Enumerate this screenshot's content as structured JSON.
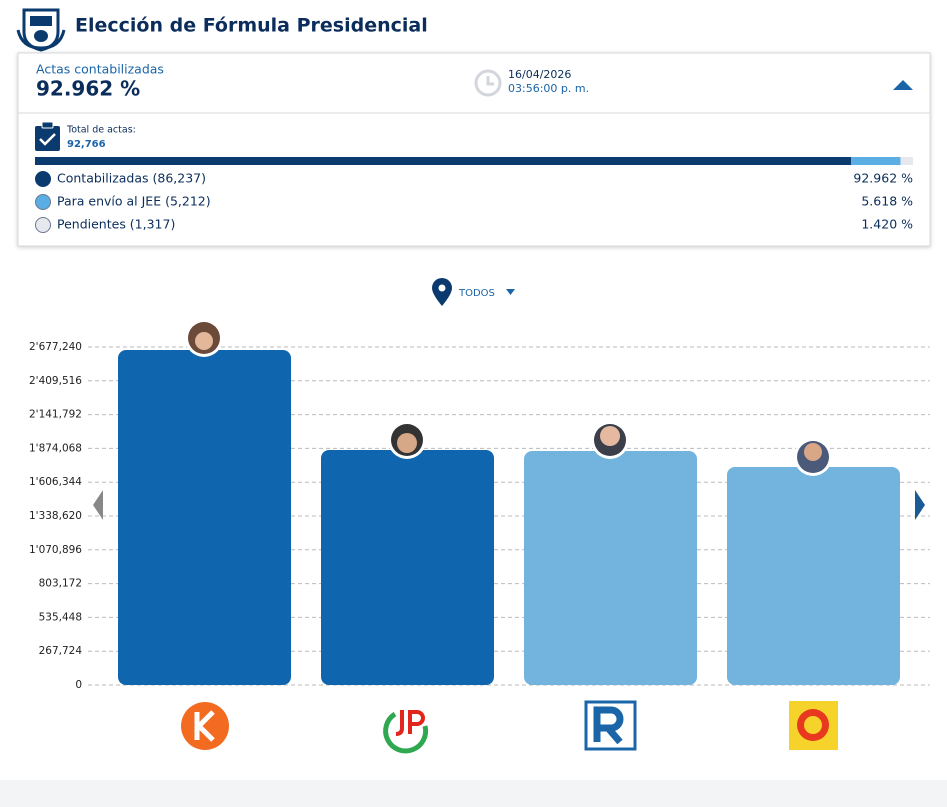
{
  "header": {
    "title": "Elección de Fórmula Presidencial"
  },
  "summary": {
    "label": "Actas contabilizadas",
    "value_label": "92.962 %",
    "date": "16/04/2026",
    "time": "03:56:00 p. m.",
    "total_label": "Total de actas:",
    "total": "92,766",
    "items": [
      {
        "name": "Contabilizadas (86,237)",
        "value": 92.962,
        "value_label": "92.962 %",
        "color": "#0b3a6e"
      },
      {
        "name": "Para envío al JEE (5,212)",
        "value": 5.618,
        "value_label": "5.618 %",
        "color": "#5aaee3"
      },
      {
        "name": "Pendientes (1,317)",
        "value": 1.42,
        "value_label": "1.420 %",
        "color": "#e6e8ee"
      }
    ]
  },
  "filter": {
    "label": "TODOS"
  },
  "chart_data": {
    "type": "bar",
    "values": [
      2653000,
      1861000,
      1853000,
      1727000
    ],
    "colors": [
      "#1066ae",
      "#1066ae",
      "#73b4de",
      "#73b4de"
    ],
    "ylim": [
      0,
      2677240
    ],
    "yticks": [
      0,
      {
        "value": 267724,
        "label": "267,724"
      },
      {
        "value": 535448,
        "label": "535,448"
      },
      {
        "value": 803172,
        "label": "803,172"
      },
      {
        "value": 1070896,
        "label": "1'070,896"
      },
      {
        "value": 1338620,
        "label": "1'338,620"
      },
      {
        "value": 1606344,
        "label": "1'606,344"
      },
      {
        "value": 1874068,
        "label": "1'874,068"
      },
      {
        "value": 2141792,
        "label": "2'141,792"
      },
      {
        "value": 2409516,
        "label": "2'409,516"
      },
      {
        "value": 2677240,
        "label": "2'677,240"
      }
    ],
    "grid": true
  }
}
